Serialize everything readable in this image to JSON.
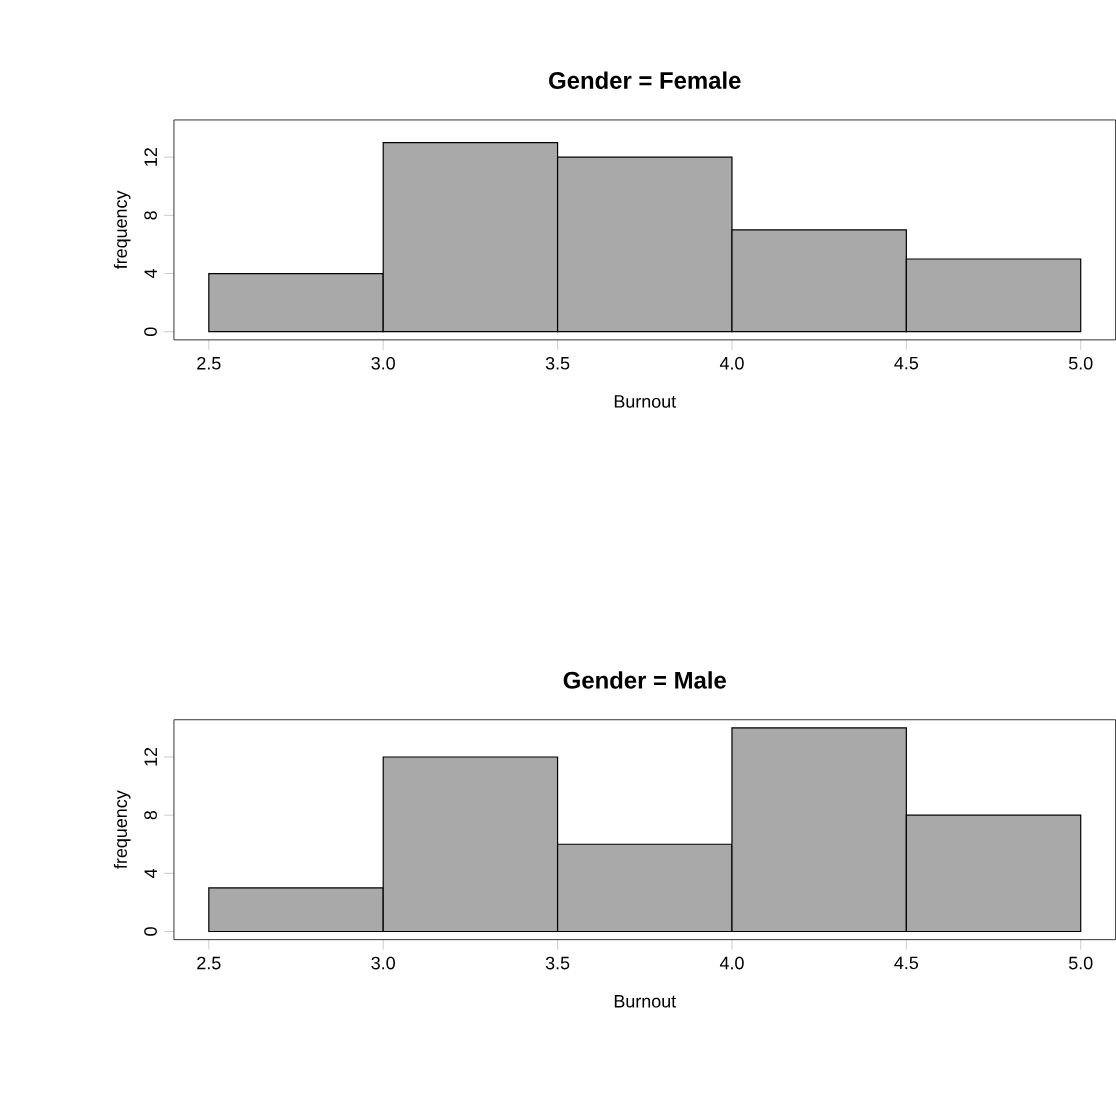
{
  "chart_data": [
    {
      "type": "histogram",
      "title": "Gender = Female",
      "xlabel": "Burnout",
      "ylabel": "frequency",
      "color": "#a9a9a9",
      "bins": [
        2.5,
        3.0,
        3.5,
        4.0,
        4.5,
        5.0
      ],
      "values": [
        4,
        13,
        12,
        7,
        5
      ],
      "xlim": [
        2.4,
        5.1
      ],
      "ylim": [
        -0.56,
        14.56
      ],
      "xticks": [
        2.5,
        {
          "value": 3,
          "label": "3.0"
        },
        3.5,
        {
          "value": 4,
          "label": "4.0"
        },
        4.5,
        {
          "value": 5,
          "label": "5.0"
        }
      ],
      "yticks": [
        0,
        4,
        8,
        12
      ]
    },
    {
      "type": "histogram",
      "title": "Gender = Male",
      "xlabel": "Burnout",
      "ylabel": "frequency",
      "color": "#a9a9a9",
      "bins": [
        2.5,
        3.0,
        3.5,
        4.0,
        4.5,
        5.0
      ],
      "values": [
        3,
        12,
        6,
        14,
        8
      ],
      "xlim": [
        2.4,
        5.1
      ],
      "ylim": [
        -0.56,
        14.56
      ],
      "xticks": [
        2.5,
        {
          "value": 3,
          "label": "3.0"
        },
        3.5,
        {
          "value": 4,
          "label": "4.0"
        },
        4.5,
        {
          "value": 5,
          "label": "5.0"
        }
      ],
      "yticks": [
        0,
        4,
        8,
        12
      ]
    }
  ]
}
